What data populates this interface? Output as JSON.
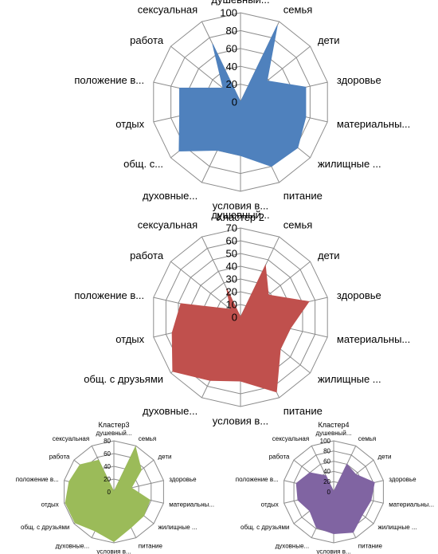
{
  "categories": [
    "душевный...",
    "семья",
    "дети",
    "здоровье",
    "материальны...",
    "жилищные ...",
    "питание",
    "условия в...",
    "духовные...",
    "общ. с...",
    "отдых",
    "положение в...",
    "работа",
    "сексуальная"
  ],
  "chart_data": [
    {
      "type": "radar",
      "title": "",
      "color": "#4f81bd",
      "ylim": [
        0,
        100
      ],
      "ticks": [
        0,
        20,
        40,
        60,
        80,
        100
      ],
      "tick_labels": [
        "0",
        "20",
        "40",
        "60",
        "80",
        "100"
      ],
      "categories": [
        "душевный...",
        "семья",
        "дети",
        "здоровье",
        "материальны...",
        "жилищные ...",
        "питание",
        "условия в...",
        "духовные...",
        "общ. с...",
        "отдых",
        "положение в...",
        "работа",
        "сексуальная"
      ],
      "values": [
        0,
        95,
        38,
        75,
        75,
        82,
        80,
        60,
        60,
        88,
        70,
        70,
        25,
        72
      ]
    },
    {
      "type": "radar",
      "title": "Кластер 2",
      "color": "#c0504d",
      "ylim": [
        0,
        70
      ],
      "ticks": [
        0,
        10,
        20,
        30,
        40,
        50,
        60,
        70
      ],
      "tick_labels": [
        "0",
        "10",
        "20",
        "30",
        "40",
        "50",
        "60",
        "70"
      ],
      "categories": [
        "душевный...",
        "семья",
        "дети",
        "здоровье",
        "материальны...",
        "жилищные ...",
        "питание",
        "условия в...",
        "духовные...",
        "общ. с друзьями",
        "отдых",
        "положение в...",
        "работа",
        "сексуальная"
      ],
      "values": [
        0,
        45,
        28,
        55,
        40,
        40,
        65,
        50,
        55,
        68,
        55,
        48,
        10,
        25
      ]
    },
    {
      "type": "radar",
      "title": "Кластер3",
      "color": "#9bbb59",
      "ylim": [
        0,
        80
      ],
      "ticks": [
        0,
        20,
        40,
        60,
        80
      ],
      "tick_labels": [
        "0",
        "20",
        "40",
        "60",
        "80"
      ],
      "categories": [
        "душевный...",
        "семья",
        "дети",
        "здоровье",
        "материальны...",
        "жилищные ...",
        "питание",
        "условия в...",
        "духовные...",
        "общ. с друзьями",
        "отдых",
        "положение в...",
        "работа",
        "сексуальная"
      ],
      "values": [
        0,
        78,
        55,
        28,
        58,
        60,
        62,
        78,
        68,
        78,
        78,
        72,
        68,
        55
      ]
    },
    {
      "type": "radar",
      "title": "Кластер4",
      "color": "#8064a2",
      "ylim": [
        0,
        100
      ],
      "ticks": [
        0,
        20,
        40,
        60,
        80,
        100
      ],
      "tick_labels": [
        "0",
        "20",
        "40",
        "60",
        "80",
        "100"
      ],
      "categories": [
        "душевный...",
        "семья",
        "дети",
        "здоровье",
        "материальны...",
        "жилищные ...",
        "питание",
        "условия в...",
        "духовные...",
        "общ. с друзьями",
        "отдых",
        "положение в...",
        "работа",
        "сексуальная"
      ],
      "values": [
        0,
        60,
        55,
        82,
        75,
        72,
        88,
        82,
        78,
        60,
        72,
        75,
        60,
        35
      ]
    }
  ]
}
